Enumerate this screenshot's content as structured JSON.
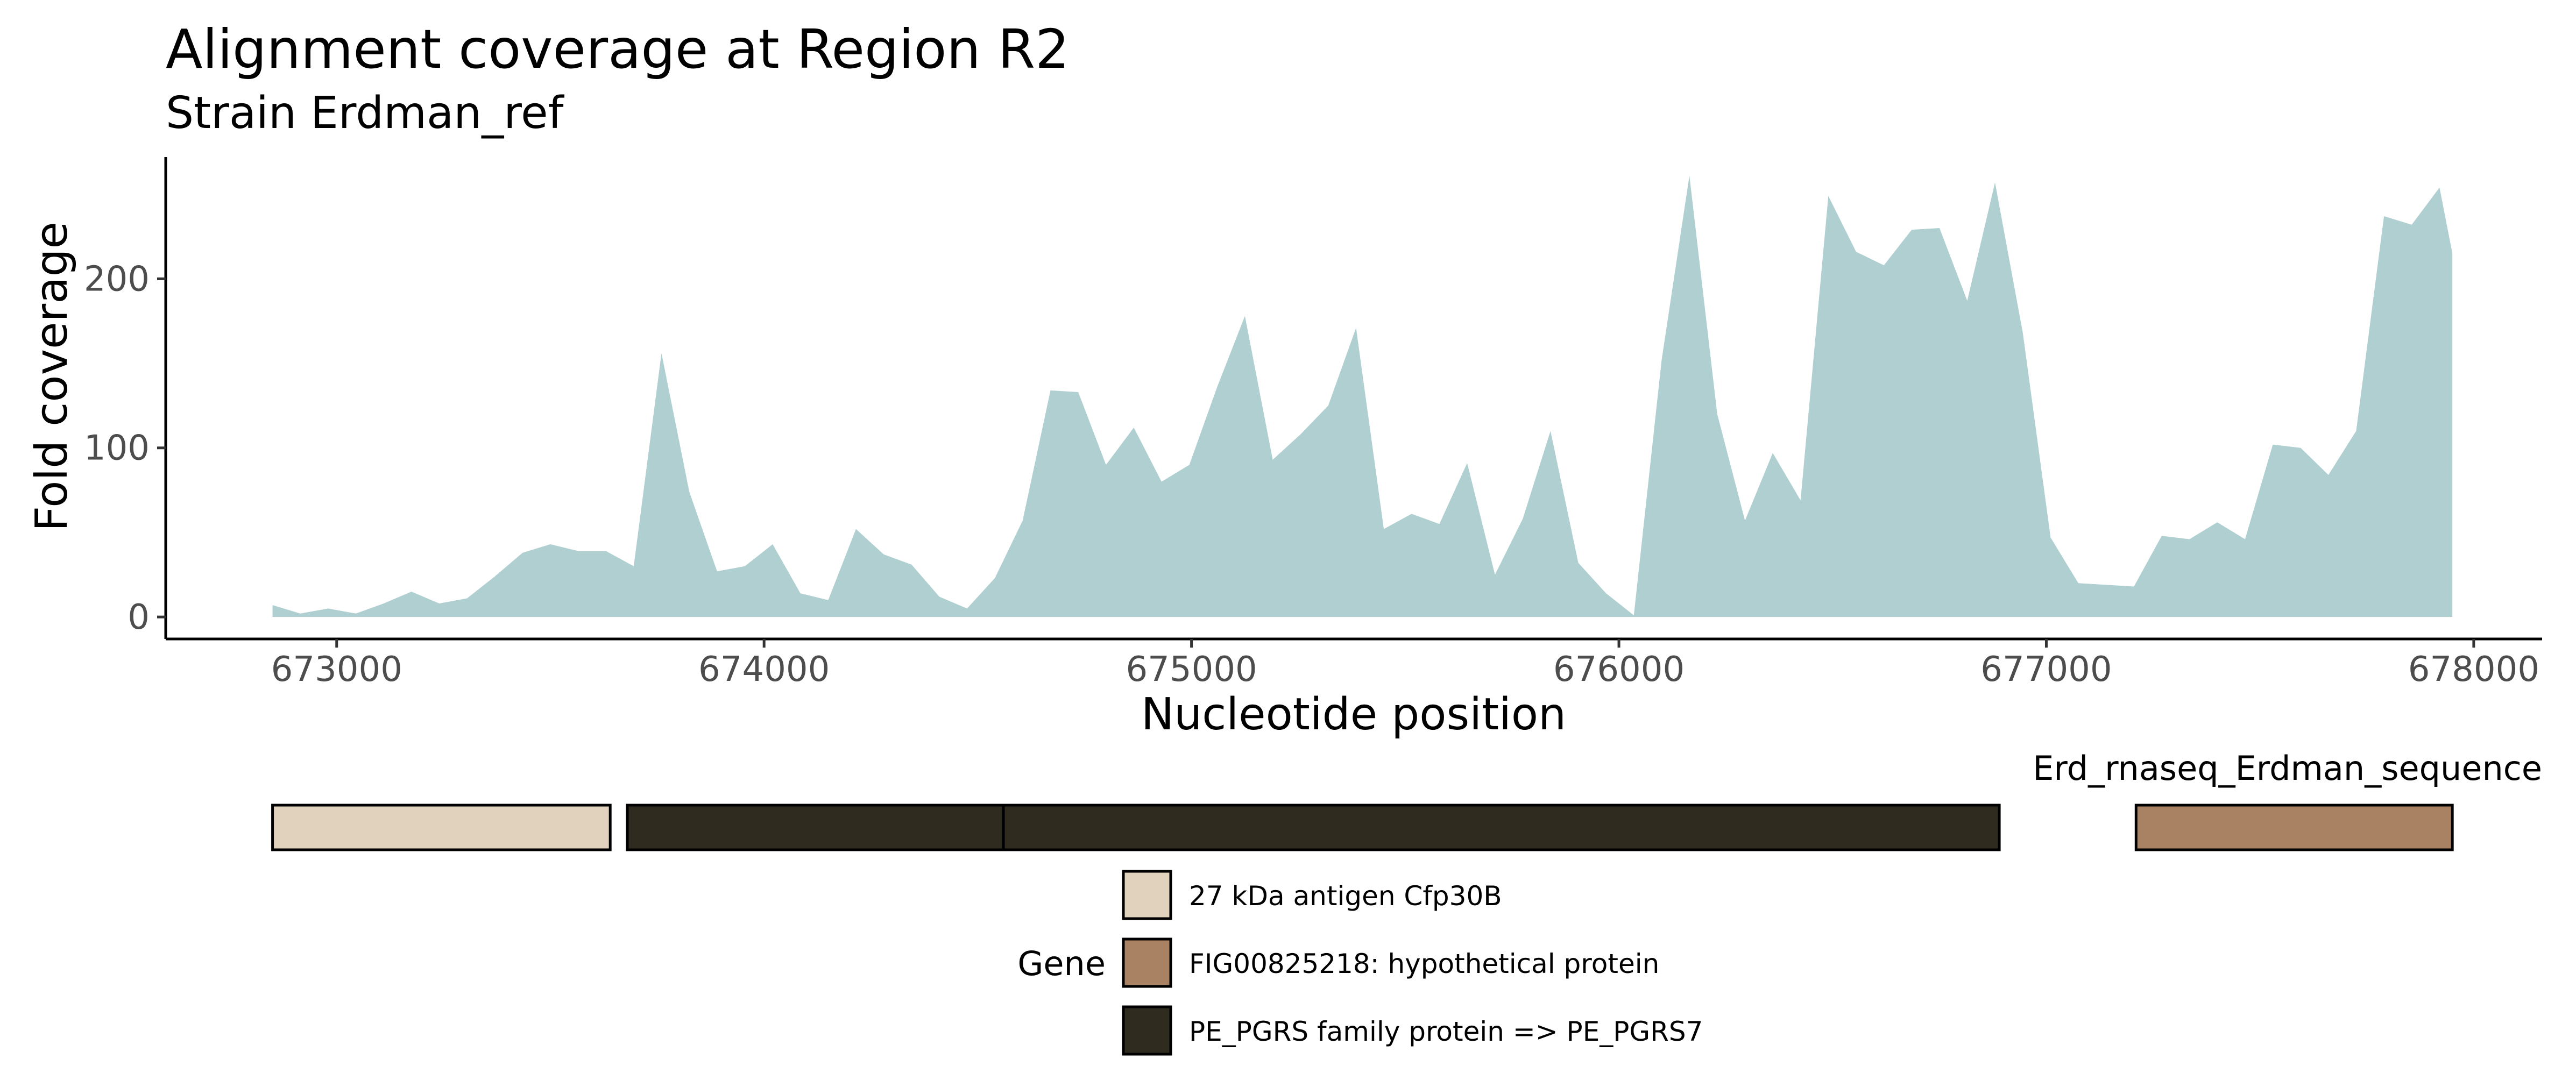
{
  "title": "Alignment coverage at Region R2",
  "subtitle": "Strain Erdman_ref",
  "chart_data": {
    "type": "area",
    "title": "Alignment coverage at Region R2",
    "subtitle": "Strain Erdman_ref",
    "xlabel": "Nucleotide position",
    "ylabel": "Fold coverage",
    "xlim": [
      672600,
      678160
    ],
    "ylim": [
      -13,
      272
    ],
    "x_ticks": [
      673000,
      674000,
      675000,
      676000,
      677000,
      678000
    ],
    "y_ticks": [
      0,
      100,
      200
    ],
    "grid": false,
    "fill_color": "#b0cfd1",
    "series": [
      {
        "x": [
          672850,
          672915,
          672980,
          673045,
          673110,
          673175,
          673240,
          673305,
          673370,
          673435,
          673500,
          673565,
          673630,
          673695,
          673760,
          673825,
          673890,
          673955,
          674020,
          674085,
          674150,
          674215,
          674280,
          674345,
          674410,
          674475,
          674540,
          674605,
          674670,
          674735,
          674800,
          674865,
          674930,
          674995,
          675060,
          675125,
          675190,
          675255,
          675320,
          675385,
          675450,
          675515,
          675580,
          675645,
          675710,
          675775,
          675840,
          675905,
          675970,
          676035,
          676100,
          676165,
          676230,
          676295,
          676360,
          676425,
          676490,
          676555,
          676620,
          676685,
          676750,
          676815,
          676880,
          676945,
          677010,
          677075,
          677140,
          677205,
          677270,
          677335,
          677400,
          677465,
          677530,
          677595,
          677660,
          677725,
          677790,
          677855,
          677920,
          677950
        ],
        "y": [
          7,
          2,
          5,
          2,
          8,
          15,
          8,
          11,
          24,
          38,
          43,
          39,
          39,
          30,
          156,
          74,
          27,
          30,
          43,
          14,
          10,
          52,
          37,
          31,
          12,
          5,
          23,
          57,
          134,
          133,
          90,
          112,
          80,
          90,
          136,
          178,
          93,
          108,
          125,
          171,
          52,
          61,
          55,
          91,
          25,
          58,
          110,
          32,
          14,
          1,
          152,
          261,
          120,
          57,
          97,
          69,
          249,
          216,
          208,
          229,
          230,
          187,
          257,
          168,
          47,
          20,
          19,
          18,
          48,
          46,
          56,
          46,
          102,
          100,
          84,
          110,
          237,
          232,
          254,
          215
        ]
      }
    ]
  },
  "genes_track": {
    "top_label": "Erd_rnaseq_Erdman_sequence",
    "features": [
      {
        "start": 672850,
        "end": 673640,
        "gene": "27 kDa antigen Cfp30B",
        "color": "#e0d2bd"
      },
      {
        "start": 673680,
        "end": 674560,
        "gene": "PE_PGRS family protein => PE_PGRS7",
        "color": "#2f2b1f"
      },
      {
        "start": 674560,
        "end": 676890,
        "gene": "PE_PGRS family protein => PE_PGRS7",
        "color": "#2f2b1f"
      },
      {
        "start": 677210,
        "end": 677950,
        "gene": "FIG00825218: hypothetical protein",
        "color": "#a98264"
      }
    ]
  },
  "legend": {
    "title": "Gene",
    "items": [
      {
        "label": "27 kDa antigen Cfp30B",
        "color": "#e0d2bd"
      },
      {
        "label": "FIG00825218: hypothetical protein",
        "color": "#a98264"
      },
      {
        "label": "PE_PGRS family protein => PE_PGRS7",
        "color": "#2f2b1f"
      }
    ]
  }
}
